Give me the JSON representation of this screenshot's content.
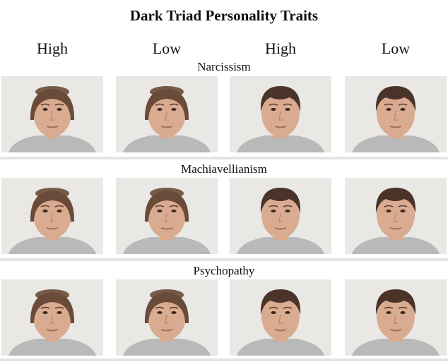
{
  "figure": {
    "title": "Dark Triad Personality Traits",
    "column_headers": [
      "High",
      "Low",
      "High",
      "Low"
    ],
    "rows": [
      {
        "label": "Narcissism",
        "faces": [
          "female",
          "female",
          "male",
          "male"
        ]
      },
      {
        "label": "Machiavellianism",
        "faces": [
          "female",
          "female",
          "male",
          "male"
        ]
      },
      {
        "label": "Psychopathy",
        "faces": [
          "female",
          "female",
          "male",
          "male"
        ]
      }
    ],
    "colors": {
      "tile_background": "#e9e8e4",
      "skin": "#d9ab91",
      "hair_female": "#6a4a38",
      "hair_male": "#4a3328",
      "shirt": "#b9b9b9",
      "divider": "#e4e4e4"
    }
  }
}
